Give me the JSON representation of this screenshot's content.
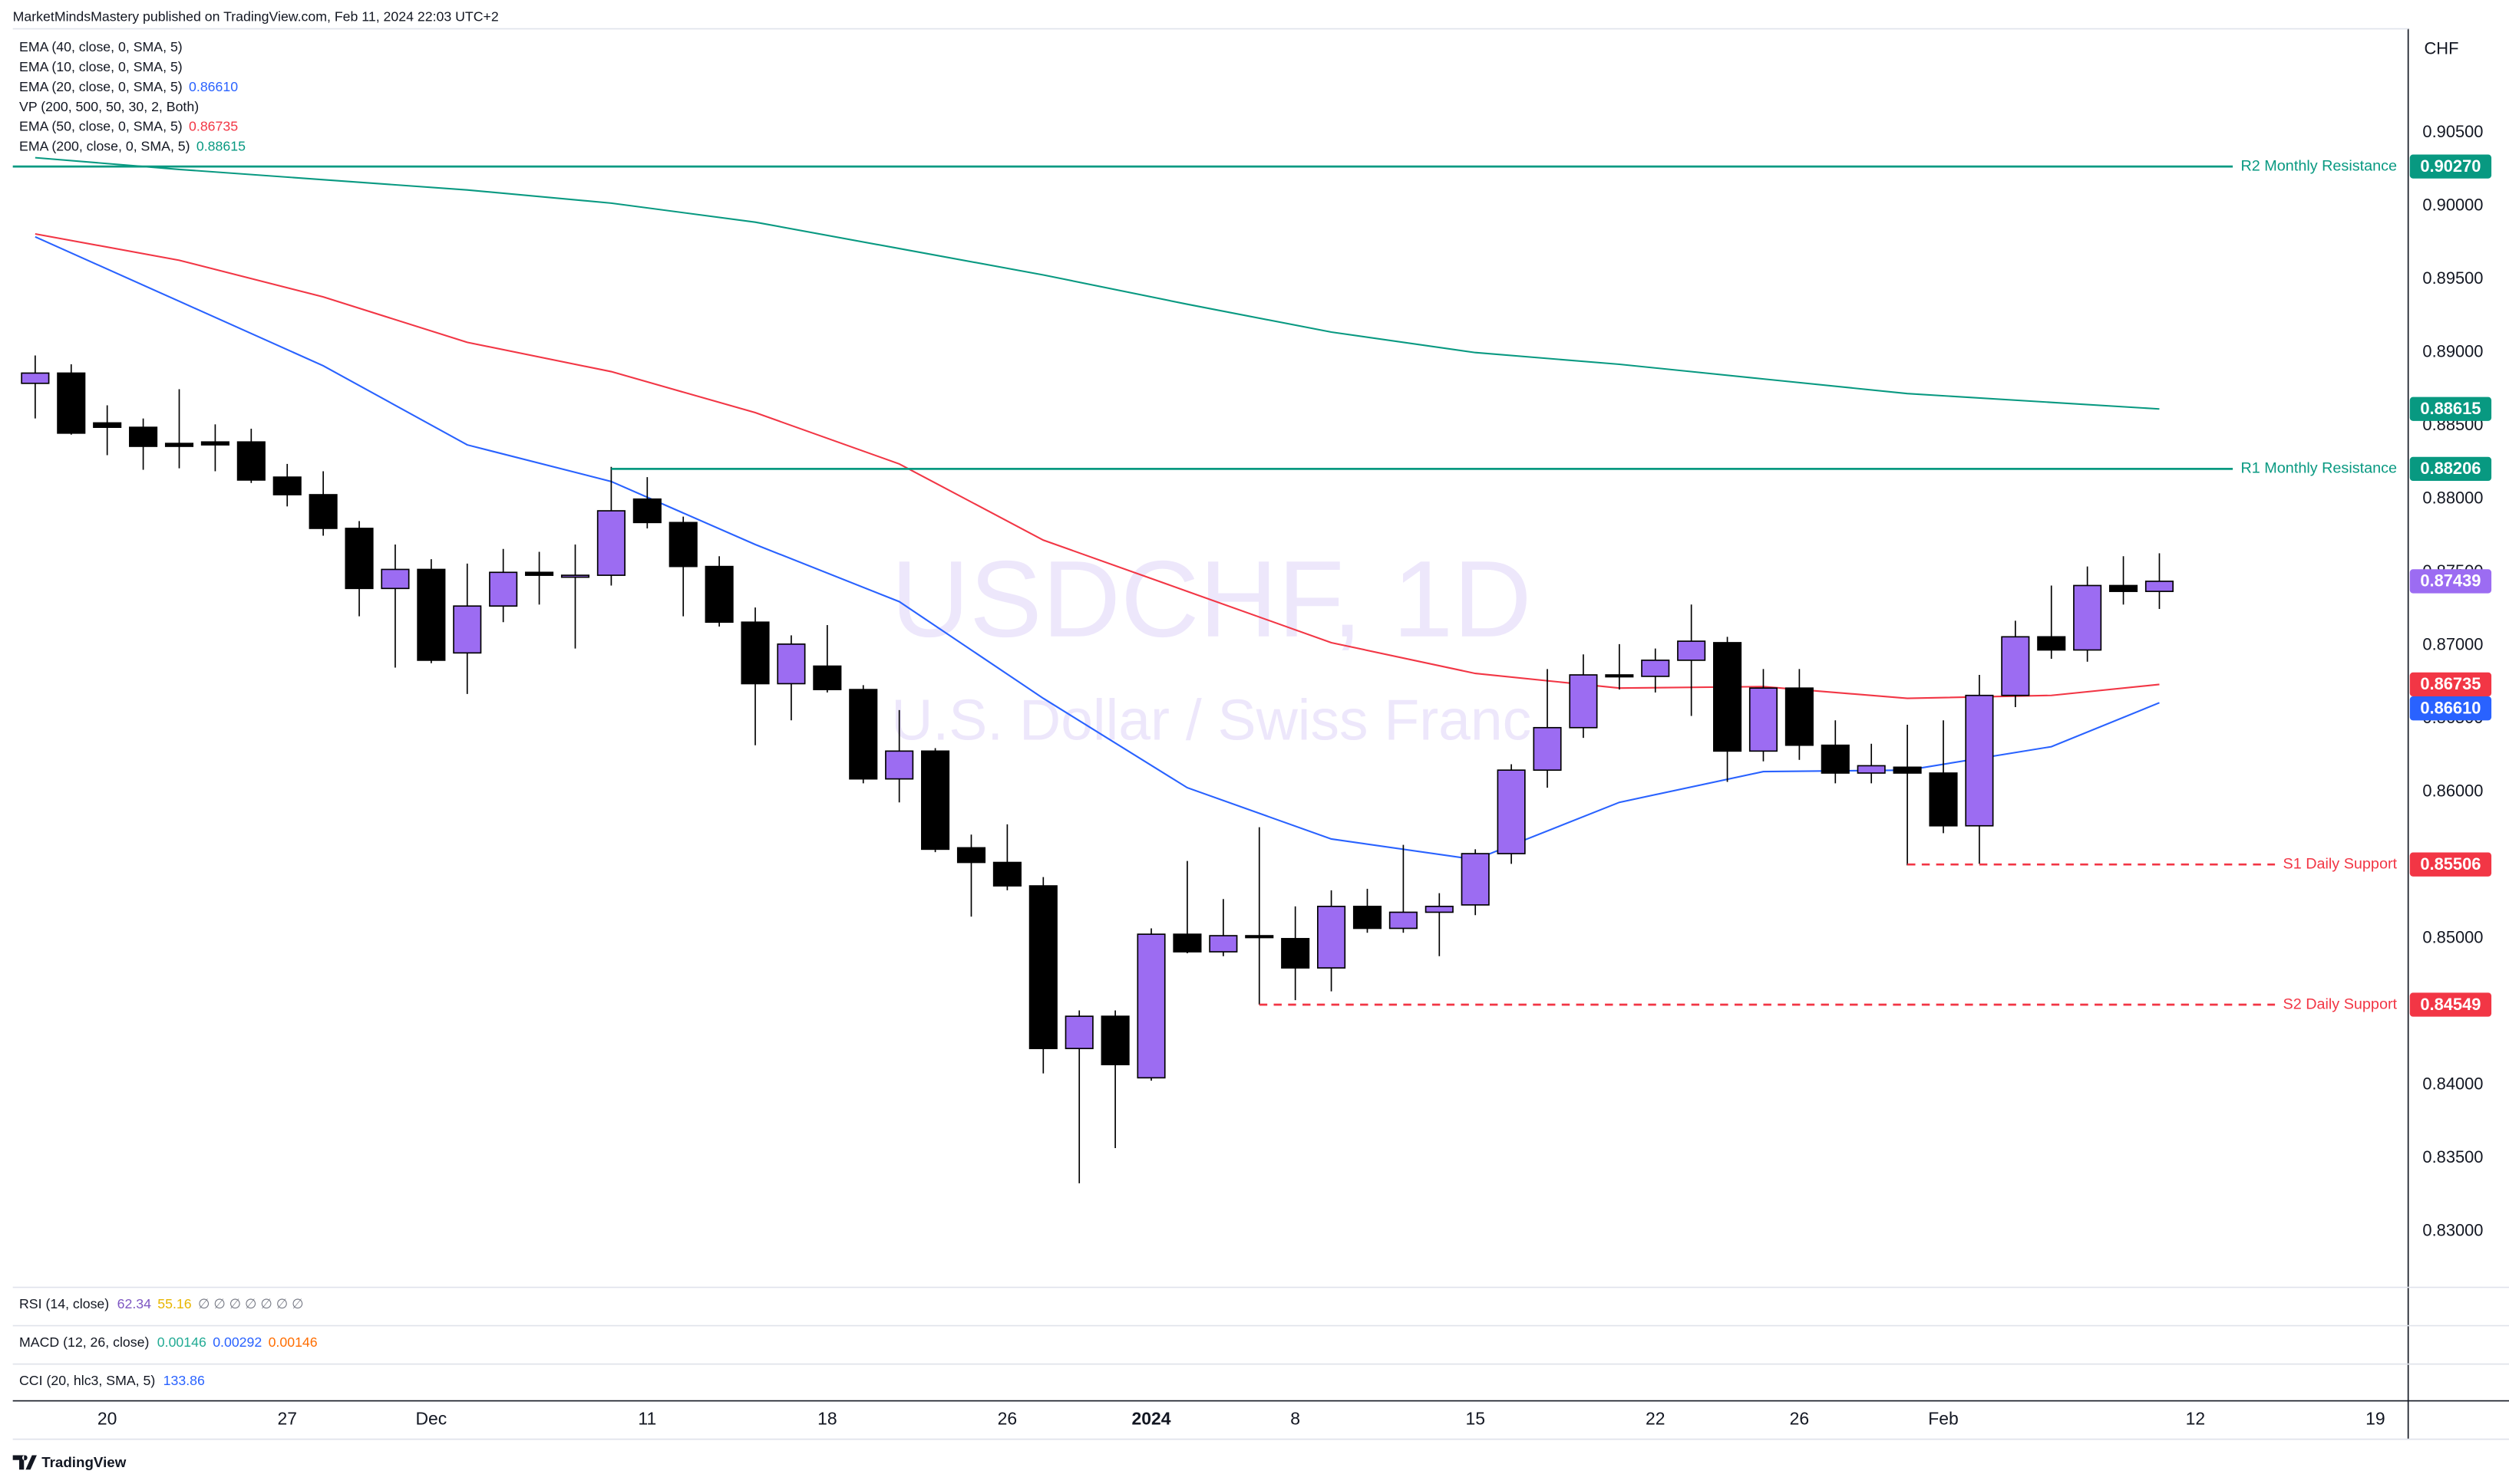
{
  "header": {
    "publisher": "MarketMindsMastery published on TradingView.com, Feb 11, 2024 22:03 UTC+2",
    "currency": "CHF"
  },
  "watermark": {
    "symbol": "USDCHF, 1D",
    "description": "U.S. Dollar / Swiss Franc"
  },
  "chart_data": {
    "type": "candlestick",
    "categories": [
      null,
      null,
      "20",
      null,
      null,
      null,
      null,
      "27",
      null,
      null,
      null,
      "Dec",
      null,
      null,
      null,
      null,
      null,
      "11",
      null,
      null,
      null,
      null,
      "18",
      null,
      null,
      null,
      null,
      "26",
      null,
      null,
      null,
      "2024",
      null,
      null,
      null,
      "8",
      null,
      null,
      null,
      null,
      "15",
      null,
      null,
      null,
      null,
      "22",
      null,
      null,
      null,
      "26",
      null,
      null,
      null,
      "Feb",
      null,
      null,
      null,
      null,
      null,
      null,
      "12",
      null,
      null,
      null,
      null,
      "19"
    ],
    "open": [
      0.8879,
      0.8886,
      0.8852,
      0.8849,
      0.8838,
      0.8839,
      0.8839,
      0.8815,
      0.8803,
      0.878,
      0.8739,
      0.8752,
      0.8695,
      0.8727,
      0.875,
      0.8747,
      0.8748,
      0.88,
      0.8784,
      0.8754,
      0.8716,
      0.8674,
      0.8686,
      0.867,
      0.8609,
      0.8628,
      0.8562,
      0.8552,
      0.8536,
      0.8425,
      0.8447,
      0.8405,
      0.8503,
      0.8491,
      0.8502,
      0.85,
      0.848,
      0.8522,
      0.8507,
      0.8518,
      0.8523,
      0.8558,
      0.8615,
      0.8644,
      0.868,
      0.8679,
      0.869,
      0.8702,
      0.8628,
      0.8671,
      0.8632,
      0.8613,
      0.8617,
      0.8613,
      0.8577,
      0.8666,
      0.8706,
      0.8697,
      0.8741,
      0.8737,
      null,
      null,
      null,
      null,
      null,
      null
    ],
    "high": [
      0.8898,
      0.8892,
      0.8864,
      0.8855,
      0.8875,
      0.8851,
      0.8848,
      0.8824,
      0.8819,
      0.8785,
      0.8769,
      0.8759,
      0.8756,
      0.8766,
      0.8764,
      0.8769,
      0.8822,
      0.8815,
      0.8788,
      0.8761,
      0.8726,
      0.8707,
      0.8714,
      0.8673,
      0.8656,
      0.863,
      0.8571,
      0.8578,
      0.8542,
      0.8451,
      0.8451,
      0.8507,
      0.8553,
      0.8527,
      0.8576,
      0.8522,
      0.8533,
      0.8534,
      0.8564,
      0.8531,
      0.8561,
      0.8619,
      0.8684,
      0.8694,
      0.8701,
      0.8698,
      0.8728,
      0.8706,
      0.8684,
      0.8684,
      0.8649,
      0.8633,
      0.8646,
      0.8649,
      0.868,
      0.8717,
      0.8741,
      0.8754,
      0.8761,
      0.8763,
      null,
      null,
      null,
      null,
      null,
      null
    ],
    "low": [
      0.8855,
      0.8844,
      0.883,
      0.882,
      0.8821,
      0.8819,
      0.8811,
      0.8795,
      0.8775,
      0.872,
      0.8685,
      0.8688,
      0.8667,
      0.8716,
      0.8728,
      0.8698,
      0.8741,
      0.878,
      0.872,
      0.8713,
      0.8632,
      0.8649,
      0.8668,
      0.8606,
      0.8593,
      0.8559,
      0.8515,
      0.8533,
      0.8408,
      0.8333,
      0.8357,
      0.8403,
      0.849,
      0.8488,
      0.8455,
      0.8458,
      0.8464,
      0.8504,
      0.8504,
      0.8488,
      0.8516,
      0.8551,
      0.8603,
      0.8637,
      0.867,
      0.8668,
      0.8652,
      0.8607,
      0.8621,
      0.8622,
      0.8606,
      0.8606,
      0.855,
      0.8572,
      0.8551,
      0.8658,
      0.8691,
      0.8689,
      0.8728,
      0.8725,
      null,
      null,
      null,
      null,
      null,
      null
    ],
    "close": [
      0.8886,
      0.8845,
      0.8849,
      0.8836,
      0.8836,
      0.8837,
      0.8813,
      0.8803,
      0.878,
      0.8739,
      0.8752,
      0.869,
      0.8727,
      0.875,
      0.8748,
      0.8748,
      0.8792,
      0.8784,
      0.8754,
      0.8716,
      0.8674,
      0.8701,
      0.867,
      0.8609,
      0.8628,
      0.8561,
      0.8552,
      0.8536,
      0.8425,
      0.8447,
      0.8414,
      0.8503,
      0.8491,
      0.8502,
      0.8501,
      0.848,
      0.8522,
      0.8507,
      0.8518,
      0.8522,
      0.8558,
      0.8615,
      0.8644,
      0.868,
      0.8679,
      0.869,
      0.8703,
      0.8628,
      0.8671,
      0.8632,
      0.8613,
      0.8618,
      0.8613,
      0.8577,
      0.8666,
      0.8706,
      0.8697,
      0.8741,
      0.8737,
      0.87439,
      null,
      null,
      null,
      null,
      null,
      null
    ],
    "last_label": "0.87439",
    "up_color": "#9c6cf2",
    "down_color": "#000000",
    "ylim": [
      0.8262,
      0.9121
    ],
    "yticks": [
      {
        "value": 0.905,
        "label": "0.90500"
      },
      {
        "value": 0.9,
        "label": "0.90000"
      },
      {
        "value": 0.895,
        "label": "0.89500"
      },
      {
        "value": 0.89,
        "label": "0.89000"
      },
      {
        "value": 0.885,
        "label": "0.88500"
      },
      {
        "value": 0.88,
        "label": "0.88000"
      },
      {
        "value": 0.875,
        "label": "0.87500"
      },
      {
        "value": 0.87,
        "label": "0.87000"
      },
      {
        "value": 0.865,
        "label": "0.86500"
      },
      {
        "value": 0.86,
        "label": "0.86000"
      },
      {
        "value": 0.855,
        "label": "0.85500"
      },
      {
        "value": 0.85,
        "label": "0.85000"
      },
      {
        "value": 0.845,
        "label": "0.84500"
      },
      {
        "value": 0.84,
        "label": "0.84000"
      },
      {
        "value": 0.835,
        "label": "0.83500"
      },
      {
        "value": 0.83,
        "label": "0.83000"
      }
    ],
    "grid": false,
    "legend_position": "upper left",
    "series": [
      {
        "name": "EMA (40, close, 0, SMA, 5)"
      },
      {
        "name": "EMA (10, close, 0, SMA, 5)"
      },
      {
        "name": "EMA (20, close, 0, SMA, 5)",
        "color": "#2962ff",
        "last_label": "0.86610",
        "x": [
          0,
          4,
          8,
          12,
          16,
          20,
          24,
          28,
          32,
          36,
          40,
          44,
          48,
          52,
          56,
          59
        ],
        "values": [
          0.8979,
          0.8935,
          0.8891,
          0.8837,
          0.8812,
          0.8769,
          0.873,
          0.8664,
          0.8603,
          0.8568,
          0.8554,
          0.8593,
          0.8614,
          0.8615,
          0.8631,
          0.8661
        ]
      },
      {
        "name": "VP (200, 500, 50, 30, 2, Both)"
      },
      {
        "name": "EMA (50, close, 0, SMA, 5)",
        "color": "#f23645",
        "last_label": "0.86735",
        "x": [
          0,
          4,
          8,
          12,
          16,
          20,
          24,
          28,
          32,
          36,
          40,
          44,
          48,
          52,
          56,
          59
        ],
        "values": [
          0.8981,
          0.8963,
          0.8938,
          0.8907,
          0.8887,
          0.8859,
          0.8824,
          0.8772,
          0.8737,
          0.8702,
          0.8681,
          0.8671,
          0.8672,
          0.8664,
          0.8666,
          0.86735
        ]
      },
      {
        "name": "EMA (200, close, 0, SMA, 5)",
        "color": "#089981",
        "last_label": "0.88615",
        "x": [
          0,
          4,
          8,
          12,
          16,
          20,
          24,
          28,
          32,
          36,
          40,
          44,
          48,
          52,
          56,
          59
        ],
        "values": [
          0.9033,
          0.9025,
          0.9018,
          0.9011,
          0.9002,
          0.8989,
          0.8971,
          0.8953,
          0.8933,
          0.8914,
          0.89,
          0.8892,
          0.8882,
          0.8872,
          0.8866,
          0.88615
        ]
      }
    ],
    "levels": [
      {
        "name": "R2 Monthly Resistance",
        "value": 0.9027,
        "label": "0.90270",
        "color": "#089981",
        "style": "solid"
      },
      {
        "name": "R1 Monthly Resistance",
        "value": 0.88206,
        "label": "0.88206",
        "color": "#089981",
        "style": "solid",
        "start": 16
      },
      {
        "name": "S1 Daily Support",
        "value": 0.85506,
        "label": "0.85506",
        "color": "#f23645",
        "style": "dashed",
        "start": 52
      },
      {
        "name": "S2 Daily Support",
        "value": 0.84549,
        "label": "0.84549",
        "color": "#f23645",
        "style": "dashed",
        "start": 34
      }
    ]
  },
  "panes": [
    {
      "name": "RSI (14, close)",
      "values": [
        62.34,
        55.16,
        "∅ ∅ ∅ ∅ ∅ ∅ ∅"
      ],
      "colors": [
        "#7e57c2",
        "#e8b600",
        "#787b86"
      ]
    },
    {
      "name": "MACD (12, 26, close)",
      "values": [
        0.00146,
        0.00292,
        0.00146
      ],
      "colors": [
        "#22ab94",
        "#2962ff",
        "#ff6d00"
      ]
    },
    {
      "name": "CCI (20, hlc3, SMA, 5)",
      "values": [
        133.86
      ],
      "colors": [
        "#2962ff"
      ]
    }
  ],
  "footer": "TradingView"
}
